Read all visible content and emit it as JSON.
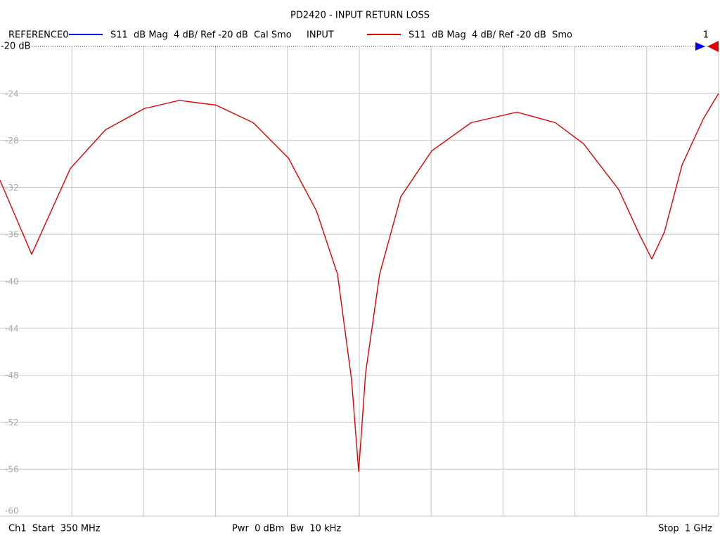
{
  "chart_data": {
    "type": "line",
    "title": "PD2420 - INPUT RETURN LOSS",
    "reference_trace": {
      "name": "REFERENCE0",
      "color": "#0000ff",
      "description": "S11  dB Mag  4 dB/ Ref -20 dB  Cal Smo"
    },
    "reference_label": "-20 dB",
    "reference_level": -20,
    "marker_label": "1",
    "x": [
      350,
      378.6,
      413.6,
      445.4,
      480.4,
      512.2,
      545.3,
      579,
      610.8,
      636.2,
      655.3,
      668,
      674.4,
      680.7,
      693.4,
      712.5,
      740.5,
      776.1,
      817.5,
      852.4,
      877.9,
      909.7,
      928.8,
      939.6,
      951,
      966.9,
      986,
      1000
    ],
    "series": [
      {
        "name": "INPUT",
        "color": "#e00000",
        "description": "S11  dB Mag  4 dB/ Ref -20 dB  Smo",
        "values": [
          -31.4,
          -37.7,
          -30.4,
          -27.1,
          -25.3,
          -24.6,
          -25.0,
          -26.5,
          -29.5,
          -34.0,
          -39.4,
          -48.4,
          -56.2,
          -47.8,
          -39.4,
          -32.8,
          -28.9,
          -26.5,
          -25.6,
          -26.5,
          -28.3,
          -32.2,
          -36.1,
          -38.1,
          -35.8,
          -30.1,
          -26.2,
          -24.0
        ]
      }
    ],
    "xlim": [
      350,
      1000
    ],
    "ylim": [
      -60,
      -20
    ],
    "yticks": [
      -20,
      -24,
      -28,
      -32,
      -36,
      -40,
      -44,
      -48,
      -52,
      -56,
      -60
    ],
    "grid": true,
    "x_grid_divisions": 10,
    "footer": {
      "left": "Ch1  Start  350 MHz",
      "center": "Pwr  0 dBm  Bw  10 kHz",
      "right": "Stop  1 GHz"
    }
  }
}
